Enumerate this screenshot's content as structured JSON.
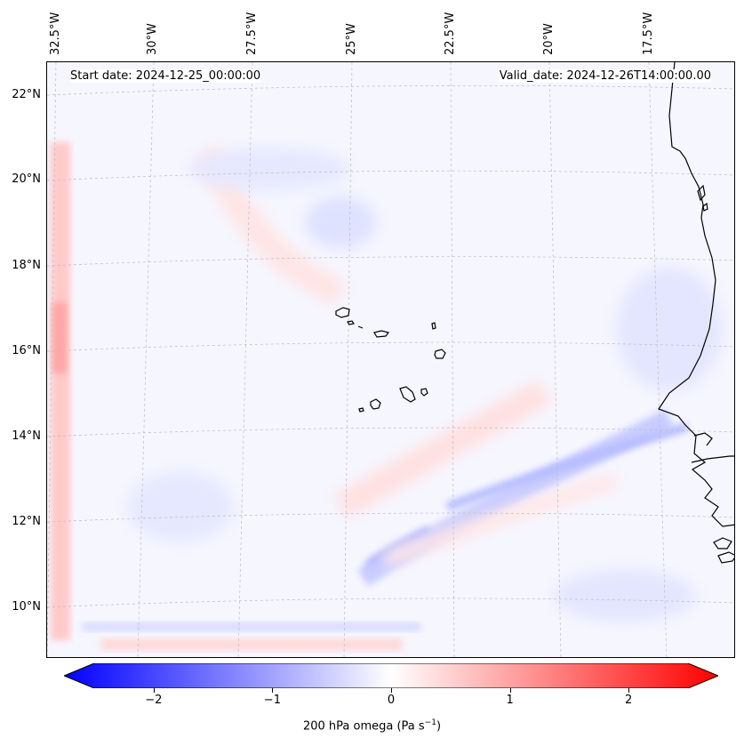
{
  "header": {
    "start_date": "Start date: 2024-12-25_00:00:00",
    "valid_date": "Valid_date: 2024-12-26T14:00:00.00"
  },
  "map": {
    "lon_labels": [
      "32.5°W",
      "30°W",
      "27.5°W",
      "25°W",
      "22.5°W",
      "20°W",
      "17.5°W"
    ],
    "lat_labels": [
      "22°N",
      "20°N",
      "18°N",
      "16°N",
      "14°N",
      "12°N",
      "10°N"
    ],
    "lon_range": [
      -32.5,
      -15.5
    ],
    "lat_range": [
      8.9,
      22.8
    ]
  },
  "colorbar": {
    "label_prefix": "200 hPa omega (Pa s",
    "label_exp": "−1",
    "label_suffix": ")",
    "ticks": [
      "−2",
      "−1",
      "0",
      "1",
      "2"
    ],
    "tick_values": [
      -2,
      -1,
      0,
      1,
      2
    ],
    "range": [
      -2.5,
      2.5
    ],
    "negative_color": "#0000ff",
    "zero_color": "#ffffff",
    "positive_color": "#ff0000"
  }
}
